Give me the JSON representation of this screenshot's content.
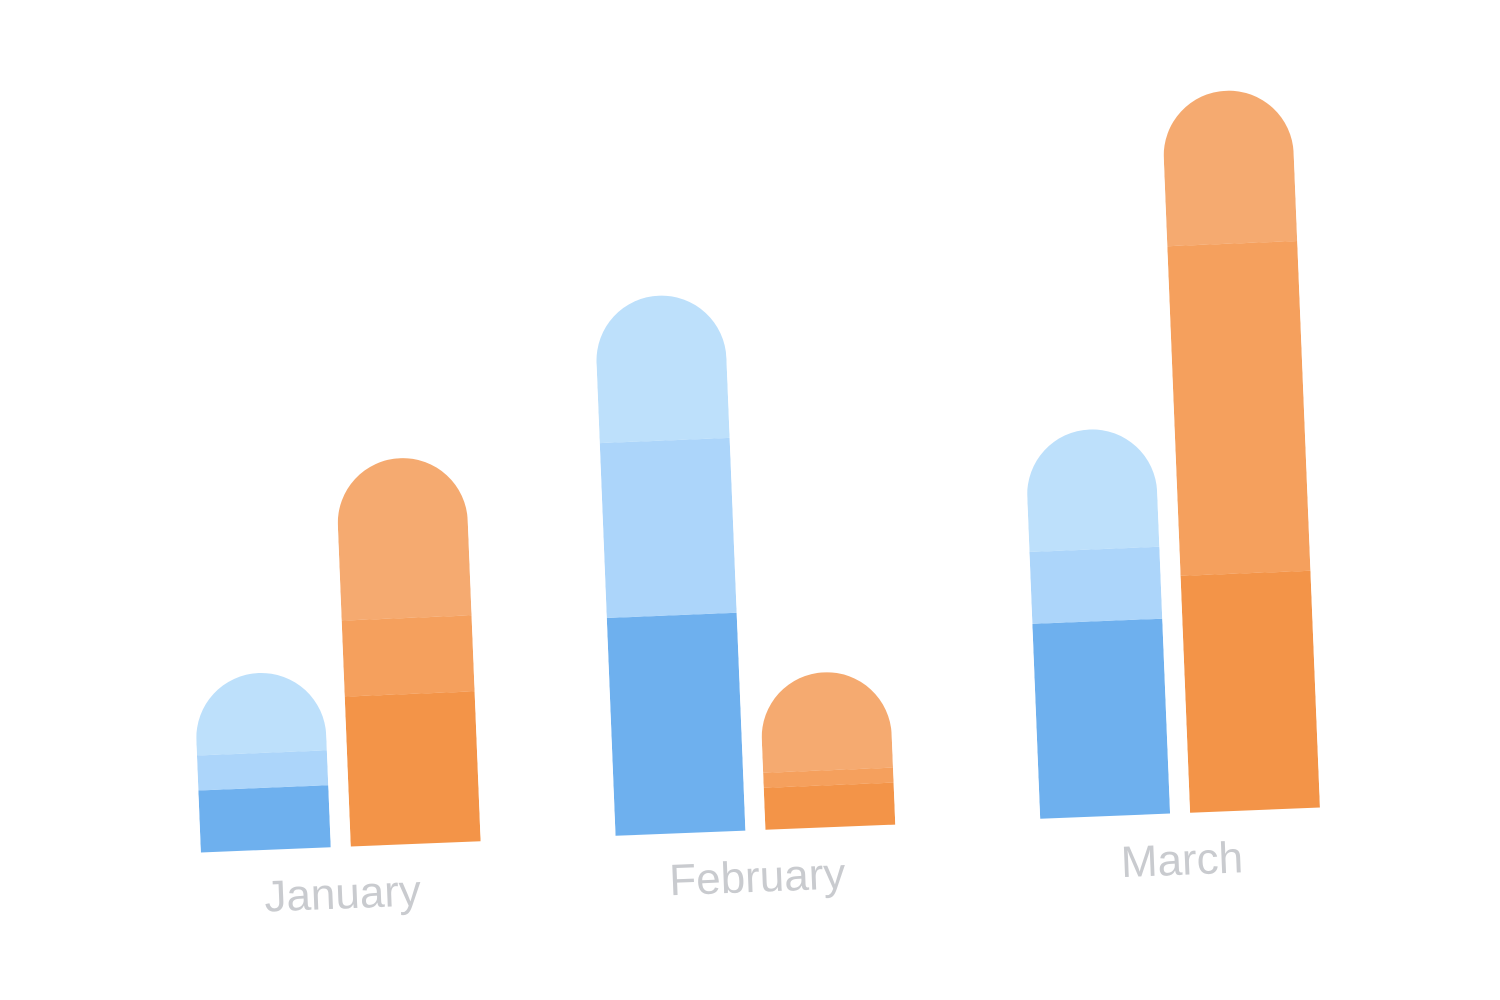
{
  "chart_data": {
    "type": "stacked-bar",
    "categories": [
      "January",
      "February",
      "March"
    ],
    "groups": [
      {
        "series": [
          {
            "color": "#6eb0ee",
            "values": [
              62,
              218,
              195
            ]
          },
          {
            "color": "#acd5fa",
            "values": [
              35,
              175,
              72
            ]
          },
          {
            "color": "#bde0fb",
            "values": [
              80,
              145,
              120
            ]
          }
        ]
      },
      {
        "series": [
          {
            "color": "#f39448",
            "values": [
              150,
              42,
              237
            ]
          },
          {
            "color": "#f5a05d",
            "values": [
              76,
              15,
              330
            ]
          },
          {
            "color": "#f5aa70",
            "values": [
              160,
              98,
              153
            ]
          }
        ]
      }
    ]
  }
}
